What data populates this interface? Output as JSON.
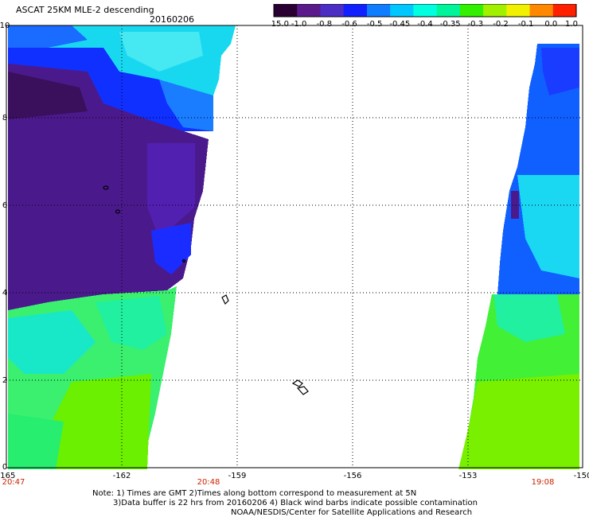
{
  "header": {
    "title": "ASCAT 25KM MLE-2 descending",
    "date": "20160206"
  },
  "colorbar": {
    "labels": [
      "-15.0",
      "-1.0",
      "-0.8",
      "-0.6",
      "-0.5",
      "-0.45",
      "-0.4",
      "-0.35",
      "-0.3",
      "-0.2",
      "-0.1",
      "0.0",
      "1.0"
    ],
    "colors": [
      "#2a0033",
      "#5a1a8c",
      "#4b2ec4",
      "#1020ff",
      "#0e7dff",
      "#00c8ff",
      "#00ffe0",
      "#00f59a",
      "#32f000",
      "#a0f000",
      "#f0f000",
      "#ff8800",
      "#ff2000"
    ]
  },
  "axes": {
    "x_ticks": [
      "-165",
      "-162",
      "-159",
      "-156",
      "-153",
      "-150"
    ],
    "y_ticks": [
      "0",
      "2",
      "4",
      "6",
      "8",
      "10"
    ],
    "xlim": [
      -165,
      -150
    ],
    "ylim": [
      0,
      10
    ]
  },
  "times": [
    "20:47",
    "20:48",
    "19:08"
  ],
  "notes": {
    "line1": "Note: 1) Times are GMT 2)Times along bottom correspond to measurement at 5N",
    "line2": "3)Data buffer is 22 hrs from 20160206 4) Black wind barbs indicate possible contamination",
    "line3": "NOAA/NESDIS/Center for Satellite Applications and Research"
  }
}
